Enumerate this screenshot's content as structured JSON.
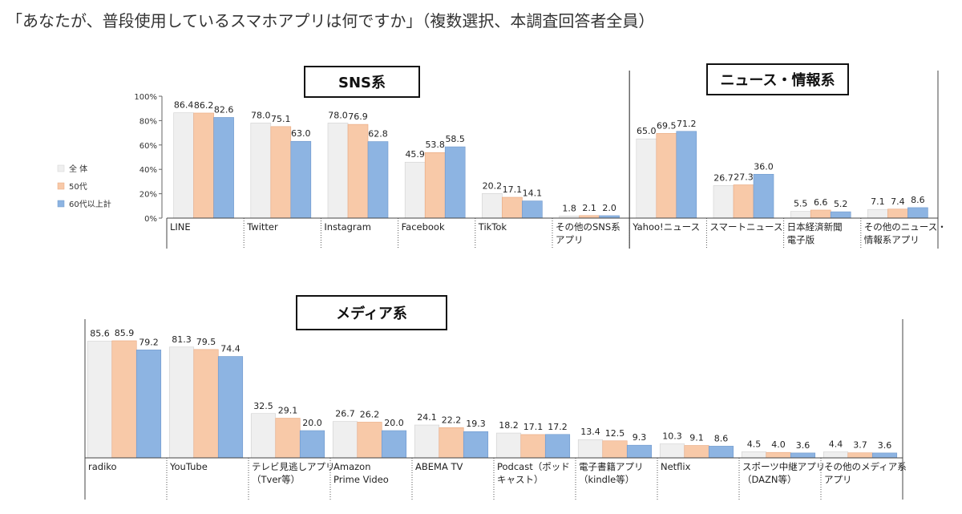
{
  "title": "「あなたが、普段使用しているスマホアプリは何ですか」（複数選択、本調査回答者全員）",
  "colors": {
    "all": "#efefef",
    "age50": "#f8c9a8",
    "age60": "#8db4e2",
    "axis": "#444444"
  },
  "chart_data": [
    {
      "type": "bar",
      "yticks": [
        "0%",
        "20%",
        "40%",
        "60%",
        "80%",
        "100%"
      ],
      "ylim": [
        0,
        100
      ],
      "legend": {
        "placement": "left",
        "entries": [
          "全 体",
          "50代",
          "60代以上計"
        ]
      },
      "sections": [
        {
          "label": "SNS系",
          "categories": [
            {
              "lines": [
                "LINE"
              ],
              "values": [
                86.4,
                86.2,
                82.6
              ]
            },
            {
              "lines": [
                "Twitter"
              ],
              "values": [
                78.0,
                75.1,
                63.0
              ]
            },
            {
              "lines": [
                "Instagram"
              ],
              "values": [
                78.0,
                76.9,
                62.8
              ]
            },
            {
              "lines": [
                "Facebook"
              ],
              "values": [
                45.9,
                53.8,
                58.5
              ]
            },
            {
              "lines": [
                "TikTok"
              ],
              "values": [
                20.2,
                17.1,
                14.1
              ]
            },
            {
              "lines": [
                "その他のSNS系",
                "アプリ"
              ],
              "values": [
                1.8,
                2.1,
                2.0
              ]
            }
          ]
        },
        {
          "label": "ニュース・情報系",
          "categories": [
            {
              "lines": [
                "Yahoo!ニュース"
              ],
              "values": [
                65.0,
                69.5,
                71.2
              ]
            },
            {
              "lines": [
                "スマートニュース"
              ],
              "values": [
                26.7,
                27.3,
                36.0
              ]
            },
            {
              "lines": [
                "日本経済新聞",
                "電子版"
              ],
              "values": [
                5.5,
                6.6,
                5.2
              ]
            },
            {
              "lines": [
                "その他のニュース・",
                "情報系アプリ"
              ],
              "values": [
                7.1,
                7.4,
                8.6
              ]
            }
          ]
        }
      ]
    },
    {
      "type": "bar",
      "ylim": [
        0,
        100
      ],
      "sections": [
        {
          "label": "メディア系",
          "categories": [
            {
              "lines": [
                "radiko"
              ],
              "values": [
                85.6,
                85.9,
                79.2
              ]
            },
            {
              "lines": [
                "YouTube"
              ],
              "values": [
                81.3,
                79.5,
                74.4
              ]
            },
            {
              "lines": [
                "テレビ見逃しアプリ",
                "（Tver等）"
              ],
              "values": [
                32.5,
                29.1,
                20.0
              ]
            },
            {
              "lines": [
                "Amazon",
                "Prime Video"
              ],
              "values": [
                26.7,
                26.2,
                20.0
              ]
            },
            {
              "lines": [
                "ABEMA TV"
              ],
              "values": [
                24.1,
                22.2,
                19.3
              ]
            },
            {
              "lines": [
                "Podcast（ポッド",
                "キャスト）"
              ],
              "values": [
                18.2,
                17.1,
                17.2
              ]
            },
            {
              "lines": [
                "電子書籍アプリ",
                "（kindle等）"
              ],
              "values": [
                13.4,
                12.5,
                9.3
              ]
            },
            {
              "lines": [
                "Netflix"
              ],
              "values": [
                10.3,
                9.1,
                8.6
              ]
            },
            {
              "lines": [
                "スポーツ中継アプリ",
                "（DAZN等）"
              ],
              "values": [
                4.5,
                4.0,
                3.6
              ]
            },
            {
              "lines": [
                "その他のメディア系",
                "アプリ"
              ],
              "values": [
                4.4,
                3.7,
                3.6
              ]
            }
          ]
        }
      ]
    }
  ]
}
